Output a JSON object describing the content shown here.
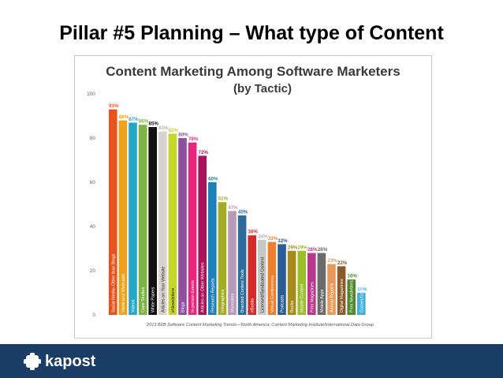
{
  "slide": {
    "title": "Pillar #5 Planning – What type of Content",
    "brand": "kapost"
  },
  "chart_data": {
    "type": "bar",
    "title": "Content Marketing Among Software Marketers",
    "subtitle": "(by Tactic)",
    "source": "2013 B2B Software Content Marketing Trends—North America: Content Marketing Institute/International Data Group",
    "categories": [
      "Social Media–Other than Blogs",
      "Webinars/ Webcasts",
      "Videos",
      "Case Studies",
      "White Papers",
      "Articles on Your Website",
      "eNewsletters",
      "Blogs",
      "In-person Events",
      "Articles on Other Websites",
      "Research Reports",
      "Infographics",
      "Microsites",
      "Branded Content Tools",
      "eBooks",
      "Licensed/Syndicated Content",
      "Virtual Conferences",
      "Podcasts",
      "Books",
      "Mobile Content",
      "Print Magazines",
      "Mobile Apps",
      "Annual Reports",
      "Digital Magazines",
      "Print Newsletters",
      "Games/Gamification"
    ],
    "values": [
      93,
      88,
      87,
      86,
      85,
      83,
      82,
      80,
      78,
      72,
      60,
      51,
      47,
      45,
      36,
      34,
      33,
      32,
      29,
      29,
      28,
      28,
      23,
      22,
      16,
      10
    ],
    "value_labels": [
      "93%",
      "88%",
      "87%",
      "86%",
      "85%",
      "83%",
      "82%",
      "80%",
      "78%",
      "72%",
      "60%",
      "51%",
      "47%",
      "45%",
      "36%",
      "34%",
      "33%",
      "32%",
      "29%",
      "29%",
      "28%",
      "28%",
      "23%",
      "22%",
      "16%",
      "10%"
    ],
    "colors": [
      "#e8531d",
      "#f0a31a",
      "#25a7c9",
      "#7cb342",
      "#111111",
      "#d9d3d0",
      "#c5d52a",
      "#8e4fa0",
      "#e9247c",
      "#a8145a",
      "#1f7fb8",
      "#a2ad24",
      "#b89ab8",
      "#2d6d9e",
      "#d42a2a",
      "#c9c7c6",
      "#ee7f2d",
      "#2a5d96",
      "#a98b1d",
      "#9bbf2a",
      "#b8398b",
      "#6b6b6b",
      "#e39a5c",
      "#8a5a2a",
      "#4d8a2a",
      "#3db0dc"
    ],
    "yticks": [
      "0",
      "20",
      "40",
      "60",
      "80",
      "100"
    ],
    "ylim": [
      0,
      100
    ],
    "grid": false
  }
}
